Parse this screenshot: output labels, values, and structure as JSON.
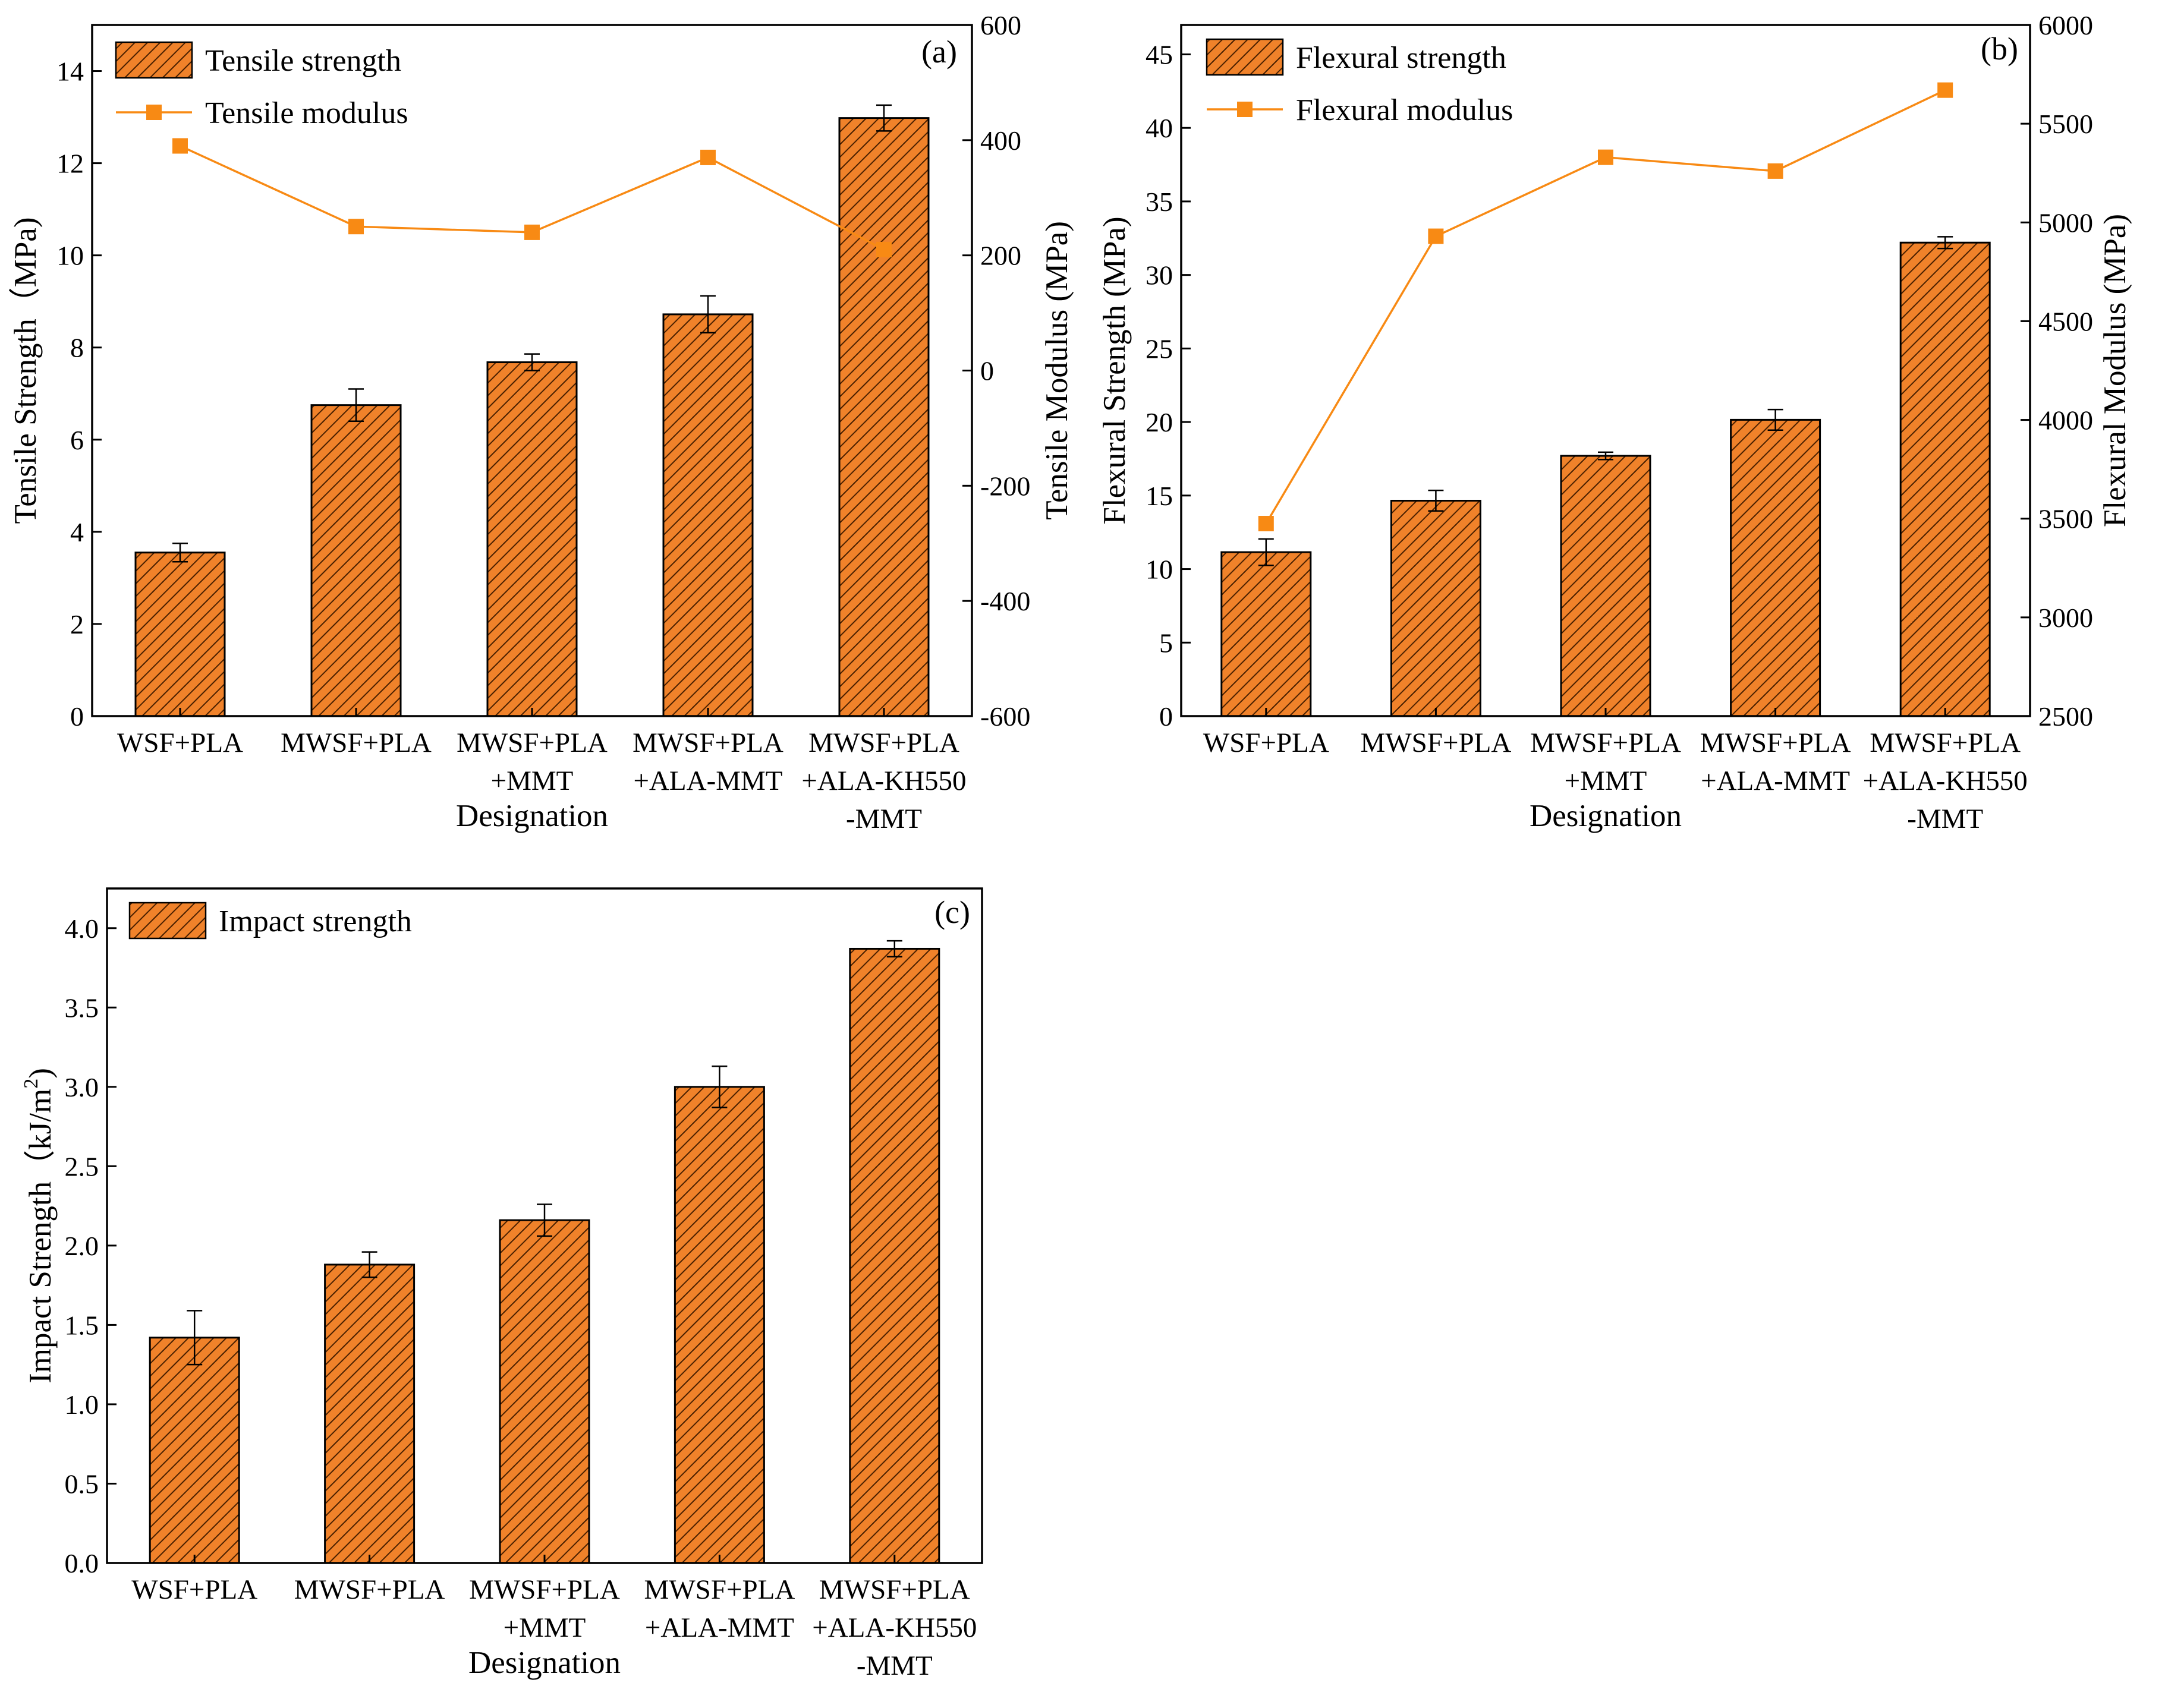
{
  "figure_name": "mechanical-properties-figure",
  "colors": {
    "bar_fill": "#F0822A",
    "bar_hatch": "#4A2000",
    "line": "#F88A14",
    "marker": "#F88A14",
    "axis": "#000000"
  },
  "chart_data": [
    {
      "id": "a",
      "type": "bar",
      "panel_label": "(a)",
      "categories": [
        [
          "WSF+PLA"
        ],
        [
          "MWSF+PLA"
        ],
        [
          "MWSF+PLA",
          "+MMT"
        ],
        [
          "MWSF+PLA",
          "+ALA-MMT"
        ],
        [
          "MWSF+PLA",
          "+ALA-KH550",
          "-MMT"
        ]
      ],
      "xlabel": "Designation",
      "ylabel": "Tensile Strength（MPa)",
      "y2label": "Tensile Modulus (MPa)",
      "ylim": [
        0,
        15
      ],
      "yticks": [
        0,
        2,
        4,
        6,
        8,
        10,
        12,
        14
      ],
      "y2lim": [
        -600,
        600
      ],
      "y2ticks": [
        -600,
        -400,
        -200,
        0,
        200,
        400,
        600
      ],
      "bar_series": {
        "name": "Tensile strength",
        "values": [
          3.55,
          6.75,
          7.68,
          8.72,
          12.98
        ],
        "errors": [
          0.2,
          0.35,
          0.18,
          0.4,
          0.28
        ]
      },
      "line_series": {
        "name": "Tensile modulus",
        "values": [
          390,
          250,
          240,
          370,
          210
        ]
      },
      "legend": [
        {
          "kind": "bar",
          "label": "Tensile strength"
        },
        {
          "kind": "line",
          "label": "Tensile modulus"
        }
      ]
    },
    {
      "id": "b",
      "type": "bar",
      "panel_label": "(b)",
      "categories": [
        [
          "WSF+PLA"
        ],
        [
          "MWSF+PLA"
        ],
        [
          "MWSF+PLA",
          "+MMT"
        ],
        [
          "MWSF+PLA",
          "+ALA-MMT"
        ],
        [
          "MWSF+PLA",
          "+ALA-KH550",
          "-MMT"
        ]
      ],
      "xlabel": "Designation",
      "ylabel": "Flexural Strength (MPa)",
      "y2label": "Flexural Modulus (MPa)",
      "ylim": [
        0,
        47
      ],
      "yticks": [
        0,
        5,
        10,
        15,
        20,
        25,
        30,
        35,
        40,
        45
      ],
      "y2lim": [
        2500,
        6000
      ],
      "y2ticks": [
        2500,
        3000,
        3500,
        4000,
        4500,
        5000,
        5500,
        6000
      ],
      "bar_series": {
        "name": "Flexural strength",
        "values": [
          11.15,
          14.65,
          17.7,
          20.15,
          32.2
        ],
        "errors": [
          0.9,
          0.7,
          0.25,
          0.7,
          0.4
        ]
      },
      "line_series": {
        "name": "Flexural modulus",
        "values": [
          3475,
          4930,
          5330,
          5260,
          5670
        ]
      },
      "legend": [
        {
          "kind": "bar",
          "label": "Flexural strength"
        },
        {
          "kind": "line",
          "label": "Flexural modulus"
        }
      ]
    },
    {
      "id": "c",
      "type": "bar",
      "panel_label": "(c)",
      "categories": [
        [
          "WSF+PLA"
        ],
        [
          "MWSF+PLA"
        ],
        [
          "MWSF+PLA",
          "+MMT"
        ],
        [
          "MWSF+PLA",
          "+ALA-MMT"
        ],
        [
          "MWSF+PLA",
          "+ALA-KH550",
          "-MMT"
        ]
      ],
      "xlabel": "Designation",
      "ylabel": "Impact Strength（kJ/m",
      "ylabel_sup": "2",
      "ylabel_end": ")",
      "ylim": [
        0,
        4.25
      ],
      "yticks": [
        0.0,
        0.5,
        1.0,
        1.5,
        2.0,
        2.5,
        3.0,
        3.5,
        4.0
      ],
      "tick_decimals": 1,
      "bar_series": {
        "name": "Impact strength",
        "values": [
          1.42,
          1.88,
          2.16,
          3.0,
          3.87
        ],
        "errors": [
          0.17,
          0.08,
          0.1,
          0.13,
          0.05
        ]
      },
      "legend": [
        {
          "kind": "bar",
          "label": "Impact strength"
        }
      ]
    }
  ]
}
